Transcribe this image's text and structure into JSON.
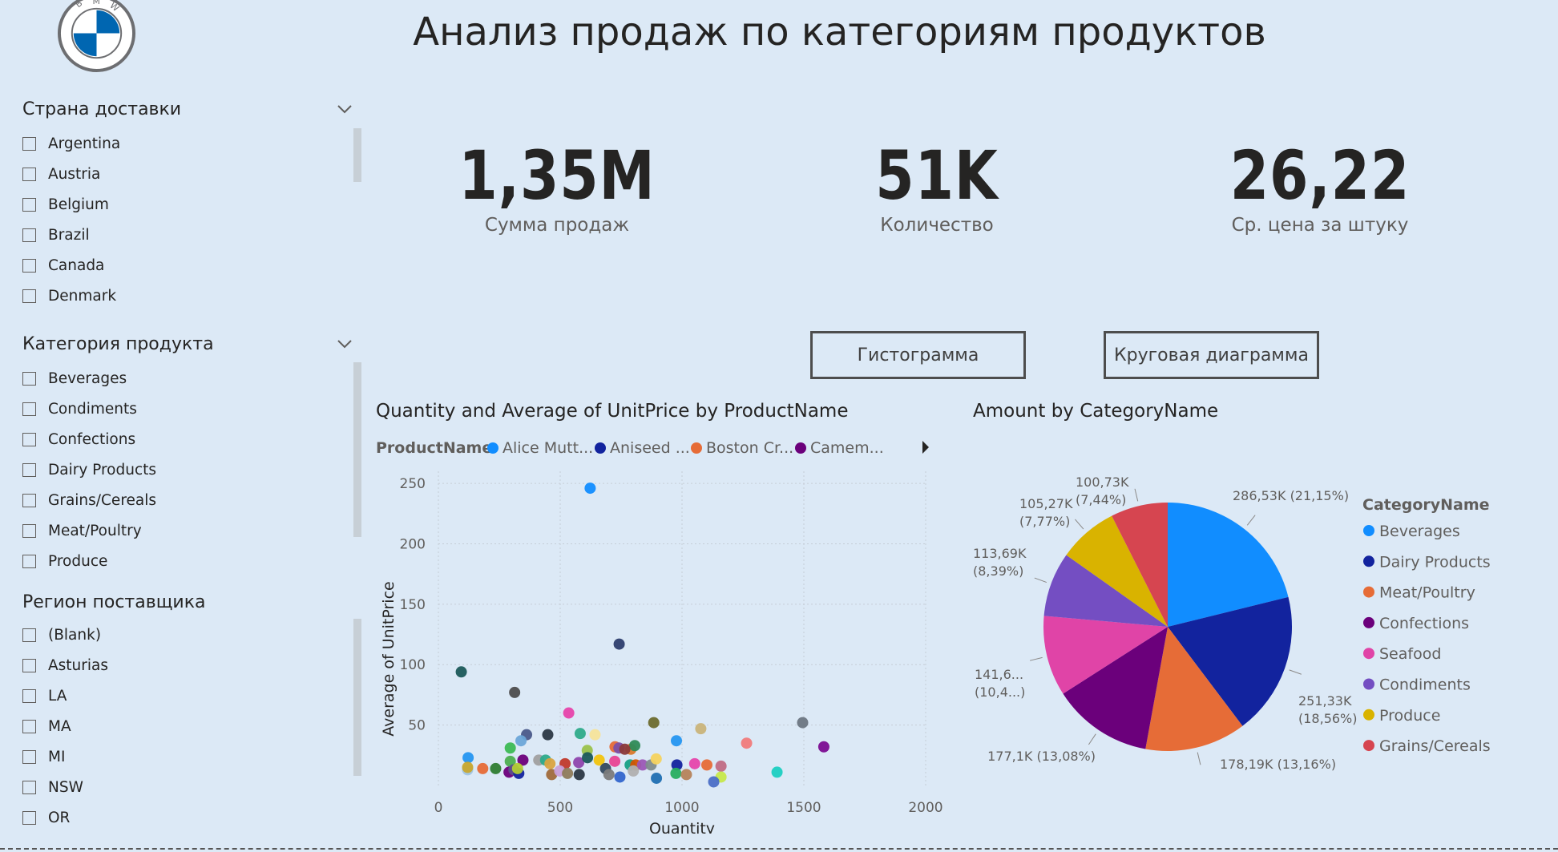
{
  "header": {
    "title": "Анализ продаж по категориям продуктов"
  },
  "logo": {
    "letters": "BMW",
    "icon": "bmw-logo"
  },
  "slicers": {
    "country": {
      "title": "Страна доставки",
      "items": [
        "Argentina",
        "Austria",
        "Belgium",
        "Brazil",
        "Canada",
        "Denmark"
      ]
    },
    "category": {
      "title": "Категория продукта",
      "items": [
        "Beverages",
        "Condiments",
        "Confections",
        "Dairy Products",
        "Grains/Cereals",
        "Meat/Poultry",
        "Produce"
      ]
    },
    "region": {
      "title": "Регион поставщика",
      "items": [
        "(Blank)",
        "Asturias",
        "LA",
        "MA",
        "MI",
        "NSW",
        "OR"
      ]
    }
  },
  "kpis": [
    {
      "value": "1,35M",
      "label": "Сумма продаж"
    },
    {
      "value": "51K",
      "label": "Количество"
    },
    {
      "value": "26,22",
      "label": "Ср. цена за штуку"
    }
  ],
  "buttons": {
    "histogram": "Гистограмма",
    "pie": "Круговая диаграмма"
  },
  "chart_data": [
    {
      "type": "scatter",
      "title": "Quantity and Average of UnitPrice by ProductName",
      "legend_title": "ProductName",
      "legend": [
        {
          "name": "Alice Mutt...",
          "color": "#118dff"
        },
        {
          "name": "Aniseed ...",
          "color": "#12239e"
        },
        {
          "name": "Boston Cr...",
          "color": "#e66c37"
        },
        {
          "name": "Camem...",
          "color": "#6b007b"
        }
      ],
      "xlabel": "Quantity",
      "ylabel": "Average of UnitPrice",
      "xlim": [
        0,
        2000
      ],
      "ylim": [
        0,
        260
      ],
      "xticks": [
        "0",
        "500",
        "1000",
        "1500",
        "2000"
      ],
      "yticks": [
        "50",
        "100",
        "150",
        "200",
        "250"
      ],
      "grid": true,
      "points": [
        {
          "x": 623,
          "y": 246,
          "color": "#118dff"
        },
        {
          "x": 742,
          "y": 117,
          "color": "#2d3e6e"
        },
        {
          "x": 94,
          "y": 94,
          "color": "#1b5a5a"
        },
        {
          "x": 313,
          "y": 77,
          "color": "#4d4d4d"
        },
        {
          "x": 535,
          "y": 60,
          "color": "#e645ab"
        },
        {
          "x": 884,
          "y": 52,
          "color": "#6b6b2e"
        },
        {
          "x": 1077,
          "y": 47,
          "color": "#c9b47a"
        },
        {
          "x": 1495,
          "y": 52,
          "color": "#6b7682"
        },
        {
          "x": 1582,
          "y": 32,
          "color": "#7b0c91"
        },
        {
          "x": 1265,
          "y": 35,
          "color": "#f07b7b"
        },
        {
          "x": 977,
          "y": 37,
          "color": "#2596f0"
        },
        {
          "x": 582,
          "y": 43,
          "color": "#2eab8a"
        },
        {
          "x": 643,
          "y": 42,
          "color": "#f5e49a"
        },
        {
          "x": 449,
          "y": 42,
          "color": "#2b3845"
        },
        {
          "x": 362,
          "y": 42,
          "color": "#4a5a8a"
        },
        {
          "x": 339,
          "y": 37,
          "color": "#6ba7d8"
        },
        {
          "x": 295,
          "y": 31,
          "color": "#3cba54"
        },
        {
          "x": 611,
          "y": 29,
          "color": "#9ac24b"
        },
        {
          "x": 725,
          "y": 32,
          "color": "#e66c37"
        },
        {
          "x": 741,
          "y": 31,
          "color": "#7b4ea7"
        },
        {
          "x": 790,
          "y": 30,
          "color": "#d97a2c"
        },
        {
          "x": 806,
          "y": 33,
          "color": "#2e8b57"
        },
        {
          "x": 765,
          "y": 30,
          "color": "#8b3a3a"
        },
        {
          "x": 122,
          "y": 23,
          "color": "#2596f0"
        },
        {
          "x": 295,
          "y": 20,
          "color": "#4caf50"
        },
        {
          "x": 347,
          "y": 21,
          "color": "#6b007b"
        },
        {
          "x": 412,
          "y": 21,
          "color": "#a0a0a0"
        },
        {
          "x": 440,
          "y": 21,
          "color": "#2eab8a"
        },
        {
          "x": 458,
          "y": 18,
          "color": "#d9a441"
        },
        {
          "x": 520,
          "y": 18,
          "color": "#c0392b"
        },
        {
          "x": 576,
          "y": 19,
          "color": "#8e44ad"
        },
        {
          "x": 612,
          "y": 23,
          "color": "#1b5a5a"
        },
        {
          "x": 660,
          "y": 21,
          "color": "#f1c40f"
        },
        {
          "x": 686,
          "y": 14,
          "color": "#34495e"
        },
        {
          "x": 724,
          "y": 20,
          "color": "#e84393"
        },
        {
          "x": 787,
          "y": 17,
          "color": "#16a085"
        },
        {
          "x": 810,
          "y": 17,
          "color": "#d35400"
        },
        {
          "x": 838,
          "y": 17,
          "color": "#9b59b6"
        },
        {
          "x": 873,
          "y": 17,
          "color": "#7f8c8d"
        },
        {
          "x": 894,
          "y": 22,
          "color": "#f4d35e"
        },
        {
          "x": 979,
          "y": 17,
          "color": "#12239e"
        },
        {
          "x": 1052,
          "y": 18,
          "color": "#e645ab"
        },
        {
          "x": 1102,
          "y": 17,
          "color": "#e66c37"
        },
        {
          "x": 1160,
          "y": 16,
          "color": "#c06c84"
        },
        {
          "x": 1390,
          "y": 11,
          "color": "#1bcfc1"
        },
        {
          "x": 120,
          "y": 13,
          "color": "#a0c4e0"
        },
        {
          "x": 182,
          "y": 14,
          "color": "#e66c37"
        },
        {
          "x": 235,
          "y": 14,
          "color": "#2e7d32"
        },
        {
          "x": 120,
          "y": 15,
          "color": "#c8a82e"
        },
        {
          "x": 290,
          "y": 11,
          "color": "#6b007b"
        },
        {
          "x": 310,
          "y": 13,
          "color": "#5d4e8c"
        },
        {
          "x": 330,
          "y": 10,
          "color": "#12239e"
        },
        {
          "x": 325,
          "y": 14,
          "color": "#b3cc33"
        },
        {
          "x": 465,
          "y": 9,
          "color": "#a06a3a"
        },
        {
          "x": 498,
          "y": 12,
          "color": "#c8a0d8"
        },
        {
          "x": 530,
          "y": 10,
          "color": "#8e7b5b"
        },
        {
          "x": 578,
          "y": 9,
          "color": "#2b3845"
        },
        {
          "x": 700,
          "y": 9,
          "color": "#7b7b7b"
        },
        {
          "x": 745,
          "y": 7,
          "color": "#3366cc"
        },
        {
          "x": 800,
          "y": 12,
          "color": "#b0b0b0"
        },
        {
          "x": 895,
          "y": 6,
          "color": "#1f6fb2"
        },
        {
          "x": 975,
          "y": 10,
          "color": "#27ae60"
        },
        {
          "x": 1018,
          "y": 9,
          "color": "#b5835a"
        },
        {
          "x": 1160,
          "y": 7,
          "color": "#c6e84b"
        },
        {
          "x": 1130,
          "y": 3,
          "color": "#4b6fc6"
        }
      ]
    },
    {
      "type": "pie",
      "title": "Amount by CategoryName",
      "legend_title": "CategoryName",
      "legend_position": "right",
      "slices": [
        {
          "name": "Beverages",
          "value": 286.53,
          "label": "286,53K (21,15%)",
          "color": "#118dff"
        },
        {
          "name": "Dairy Products",
          "value": 251.33,
          "label": "251,33K (18,56%)",
          "color": "#12239e"
        },
        {
          "name": "Meat/Poultry",
          "value": 178.19,
          "label": "178,19K (13,16%)",
          "color": "#e66c37"
        },
        {
          "name": "Confections",
          "value": 177.1,
          "label": "177,1K (13,08%)",
          "color": "#6b007b"
        },
        {
          "name": "Seafood",
          "value": 141.6,
          "label": "141,6... (10,4...)",
          "color": "#e044a7"
        },
        {
          "name": "Condiments",
          "value": 113.69,
          "label": "113,69K (8,39%)",
          "color": "#744ec2"
        },
        {
          "name": "Produce",
          "value": 105.27,
          "label": "105,27K (7,77%)",
          "color": "#d9b300"
        },
        {
          "name": "Grains/Cereals",
          "value": 100.73,
          "label": "100,73K (7,44%)",
          "color": "#d64550"
        }
      ]
    }
  ]
}
